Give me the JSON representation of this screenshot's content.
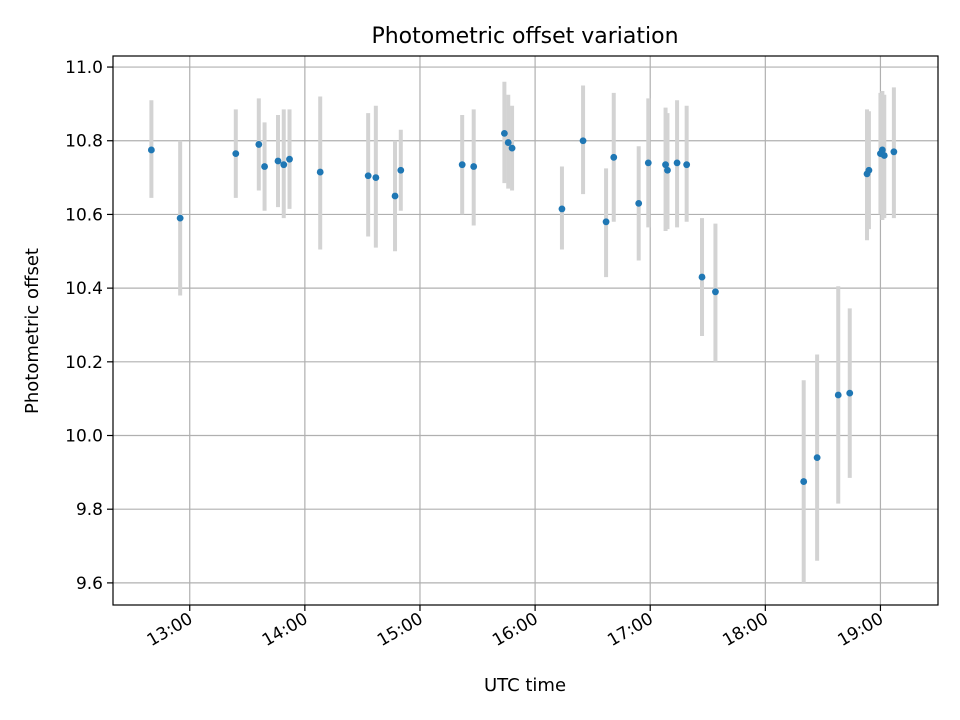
{
  "chart_data": {
    "type": "scatter",
    "title": "Photometric offset variation",
    "xlabel": "UTC time",
    "ylabel": "Photometric offset",
    "x_is_time": true,
    "xlim": [
      "12:20",
      "19:30"
    ],
    "ylim": [
      9.54,
      11.03
    ],
    "x_ticks": [
      "13:00",
      "14:00",
      "15:00",
      "16:00",
      "17:00",
      "18:00",
      "19:00"
    ],
    "y_ticks": [
      "9.6",
      "9.8",
      "10.0",
      "10.2",
      "10.4",
      "10.6",
      "10.8",
      "11.0"
    ],
    "grid": true,
    "colors": {
      "points": "#1f77b4",
      "error_bars": "#d3d3d3",
      "grid": "#b0b0b0"
    },
    "points": [
      {
        "t": "12:40",
        "y": 10.775,
        "lo": 10.645,
        "hi": 10.91
      },
      {
        "t": "12:55",
        "y": 10.59,
        "lo": 10.38,
        "hi": 10.8
      },
      {
        "t": "13:24",
        "y": 10.765,
        "lo": 10.645,
        "hi": 10.885
      },
      {
        "t": "13:36",
        "y": 10.79,
        "lo": 10.665,
        "hi": 10.915
      },
      {
        "t": "13:39",
        "y": 10.73,
        "lo": 10.61,
        "hi": 10.85
      },
      {
        "t": "13:46",
        "y": 10.745,
        "lo": 10.62,
        "hi": 10.87
      },
      {
        "t": "13:49",
        "y": 10.735,
        "lo": 10.59,
        "hi": 10.885
      },
      {
        "t": "13:52",
        "y": 10.75,
        "lo": 10.615,
        "hi": 10.885
      },
      {
        "t": "14:08",
        "y": 10.715,
        "lo": 10.505,
        "hi": 10.92
      },
      {
        "t": "14:33",
        "y": 10.705,
        "lo": 10.54,
        "hi": 10.875
      },
      {
        "t": "14:37",
        "y": 10.7,
        "lo": 10.51,
        "hi": 10.895
      },
      {
        "t": "14:47",
        "y": 10.65,
        "lo": 10.5,
        "hi": 10.8
      },
      {
        "t": "14:50",
        "y": 10.72,
        "lo": 10.61,
        "hi": 10.83
      },
      {
        "t": "15:22",
        "y": 10.735,
        "lo": 10.6,
        "hi": 10.87
      },
      {
        "t": "15:28",
        "y": 10.73,
        "lo": 10.57,
        "hi": 10.885
      },
      {
        "t": "15:44",
        "y": 10.82,
        "lo": 10.685,
        "hi": 10.96
      },
      {
        "t": "15:46",
        "y": 10.795,
        "lo": 10.67,
        "hi": 10.925
      },
      {
        "t": "15:48",
        "y": 10.78,
        "lo": 10.665,
        "hi": 10.895
      },
      {
        "t": "16:14",
        "y": 10.615,
        "lo": 10.505,
        "hi": 10.73
      },
      {
        "t": "16:25",
        "y": 10.8,
        "lo": 10.655,
        "hi": 10.95
      },
      {
        "t": "16:37",
        "y": 10.58,
        "lo": 10.43,
        "hi": 10.725
      },
      {
        "t": "16:41",
        "y": 10.755,
        "lo": 10.58,
        "hi": 10.93
      },
      {
        "t": "16:54",
        "y": 10.63,
        "lo": 10.475,
        "hi": 10.785
      },
      {
        "t": "16:59",
        "y": 10.74,
        "lo": 10.565,
        "hi": 10.915
      },
      {
        "t": "17:08",
        "y": 10.735,
        "lo": 10.555,
        "hi": 10.89
      },
      {
        "t": "17:09",
        "y": 10.72,
        "lo": 10.56,
        "hi": 10.875
      },
      {
        "t": "17:14",
        "y": 10.74,
        "lo": 10.565,
        "hi": 10.91
      },
      {
        "t": "17:19",
        "y": 10.735,
        "lo": 10.58,
        "hi": 10.895
      },
      {
        "t": "17:27",
        "y": 10.43,
        "lo": 10.27,
        "hi": 10.59
      },
      {
        "t": "17:34",
        "y": 10.39,
        "lo": 10.2,
        "hi": 10.575
      },
      {
        "t": "18:20",
        "y": 9.875,
        "lo": 9.6,
        "hi": 10.15
      },
      {
        "t": "18:27",
        "y": 9.94,
        "lo": 9.66,
        "hi": 10.22
      },
      {
        "t": "18:38",
        "y": 10.11,
        "lo": 9.815,
        "hi": 10.405
      },
      {
        "t": "18:44",
        "y": 10.115,
        "lo": 9.885,
        "hi": 10.345
      },
      {
        "t": "18:53",
        "y": 10.71,
        "lo": 10.53,
        "hi": 10.885
      },
      {
        "t": "18:54",
        "y": 10.72,
        "lo": 10.56,
        "hi": 10.88
      },
      {
        "t": "19:00",
        "y": 10.765,
        "lo": 10.6,
        "hi": 10.93
      },
      {
        "t": "19:01",
        "y": 10.775,
        "lo": 10.585,
        "hi": 10.935
      },
      {
        "t": "19:02",
        "y": 10.76,
        "lo": 10.59,
        "hi": 10.925
      },
      {
        "t": "19:07",
        "y": 10.77,
        "lo": 10.59,
        "hi": 10.945
      }
    ]
  }
}
